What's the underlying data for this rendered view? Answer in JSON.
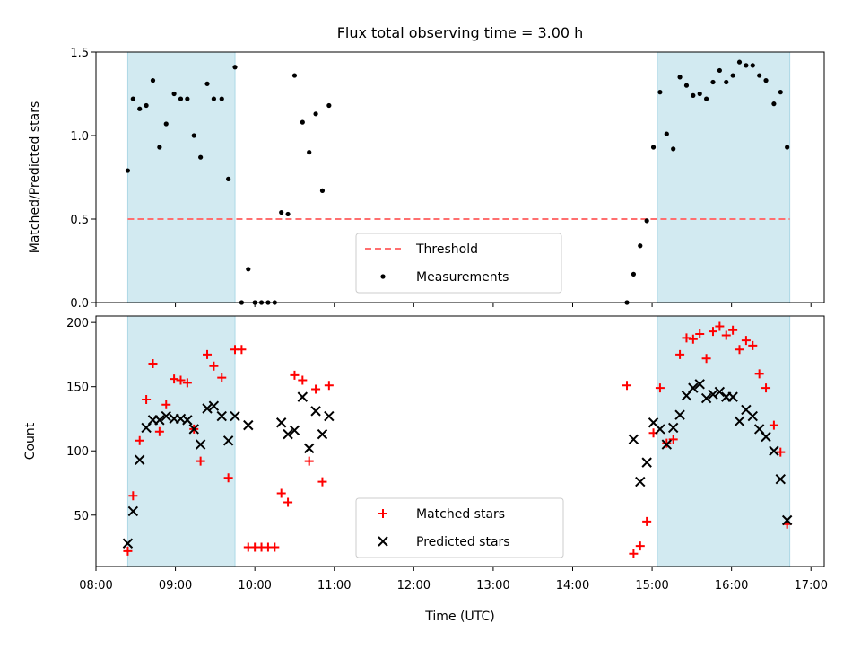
{
  "figure": {
    "title": "Flux total observing time = 3.00 h",
    "xlabel": "Time (UTC)"
  },
  "chart_data": [
    {
      "type": "scatter",
      "title": "Flux total observing time = 3.00 h",
      "ylabel": "Matched/Predicted stars",
      "xlim": [
        "08:00",
        "17:10"
      ],
      "ylim": [
        0,
        1.5
      ],
      "yticks": [
        "0.0",
        "0.5",
        "1.0",
        "1.5"
      ],
      "grid": false,
      "legend_position": "lower-center",
      "shaded_intervals": [
        {
          "start": "08:24",
          "end": "09:45",
          "color": "#add8e6"
        },
        {
          "start": "15:04",
          "end": "16:44",
          "color": "#add8e6"
        }
      ],
      "threshold": {
        "name": "Threshold",
        "value": 0.5,
        "color": "#ff6f6f",
        "style": "dashed"
      },
      "series": [
        {
          "name": "Measurements",
          "color": "#000000",
          "marker": "dot",
          "points": [
            [
              "08:24",
              0.79
            ],
            [
              "08:28",
              1.22
            ],
            [
              "08:33",
              1.16
            ],
            [
              "08:38",
              1.18
            ],
            [
              "08:43",
              1.33
            ],
            [
              "08:48",
              0.93
            ],
            [
              "08:53",
              1.07
            ],
            [
              "08:59",
              1.25
            ],
            [
              "09:04",
              1.22
            ],
            [
              "09:09",
              1.22
            ],
            [
              "09:14",
              1.0
            ],
            [
              "09:19",
              0.87
            ],
            [
              "09:24",
              1.31
            ],
            [
              "09:29",
              1.22
            ],
            [
              "09:35",
              1.22
            ],
            [
              "09:40",
              0.74
            ],
            [
              "09:45",
              1.41
            ],
            [
              "09:50",
              0.0
            ],
            [
              "09:55",
              0.2
            ],
            [
              "10:00",
              0.0
            ],
            [
              "10:05",
              0.0
            ],
            [
              "10:10",
              0.0
            ],
            [
              "10:15",
              0.0
            ],
            [
              "10:20",
              0.54
            ],
            [
              "10:25",
              0.53
            ],
            [
              "10:30",
              1.36
            ],
            [
              "10:36",
              1.08
            ],
            [
              "10:41",
              0.9
            ],
            [
              "10:46",
              1.13
            ],
            [
              "10:51",
              0.67
            ],
            [
              "10:56",
              1.18
            ],
            [
              "14:41",
              0.0
            ],
            [
              "14:46",
              0.17
            ],
            [
              "14:51",
              0.34
            ],
            [
              "14:56",
              0.49
            ],
            [
              "15:01",
              0.93
            ],
            [
              "15:06",
              1.26
            ],
            [
              "15:11",
              1.01
            ],
            [
              "15:16",
              0.92
            ],
            [
              "15:21",
              1.35
            ],
            [
              "15:26",
              1.3
            ],
            [
              "15:31",
              1.24
            ],
            [
              "15:36",
              1.25
            ],
            [
              "15:41",
              1.22
            ],
            [
              "15:46",
              1.32
            ],
            [
              "15:51",
              1.39
            ],
            [
              "15:56",
              1.32
            ],
            [
              "16:01",
              1.36
            ],
            [
              "16:06",
              1.44
            ],
            [
              "16:11",
              1.42
            ],
            [
              "16:16",
              1.42
            ],
            [
              "16:21",
              1.36
            ],
            [
              "16:26",
              1.33
            ],
            [
              "16:32",
              1.19
            ],
            [
              "16:37",
              1.26
            ],
            [
              "16:42",
              0.93
            ]
          ]
        }
      ]
    },
    {
      "type": "scatter",
      "ylabel": "Count",
      "xlabel": "Time (UTC)",
      "xlim": [
        "08:00",
        "17:10"
      ],
      "ylim": [
        10,
        205
      ],
      "yticks": [
        "50",
        "100",
        "150",
        "200"
      ],
      "xticks": [
        "08:00",
        "09:00",
        "10:00",
        "11:00",
        "12:00",
        "13:00",
        "14:00",
        "15:00",
        "16:00",
        "17:00"
      ],
      "grid": false,
      "legend_position": "lower-center",
      "shaded_intervals": [
        {
          "start": "08:24",
          "end": "09:45",
          "color": "#add8e6"
        },
        {
          "start": "15:04",
          "end": "16:44",
          "color": "#add8e6"
        }
      ],
      "series": [
        {
          "name": "Matched stars",
          "color": "#ff0000",
          "marker": "plus",
          "points": [
            [
              "08:24",
              22
            ],
            [
              "08:28",
              65
            ],
            [
              "08:33",
              108
            ],
            [
              "08:38",
              140
            ],
            [
              "08:43",
              168
            ],
            [
              "08:48",
              115
            ],
            [
              "08:53",
              136
            ],
            [
              "08:59",
              156
            ],
            [
              "09:04",
              155
            ],
            [
              "09:09",
              153
            ],
            [
              "09:14",
              117
            ],
            [
              "09:19",
              92
            ],
            [
              "09:24",
              175
            ],
            [
              "09:29",
              166
            ],
            [
              "09:35",
              157
            ],
            [
              "09:40",
              79
            ],
            [
              "09:45",
              179
            ],
            [
              "09:50",
              179
            ],
            [
              "09:55",
              25
            ],
            [
              "10:00",
              25
            ],
            [
              "10:05",
              25
            ],
            [
              "10:10",
              25
            ],
            [
              "10:15",
              25
            ],
            [
              "10:20",
              67
            ],
            [
              "10:25",
              60
            ],
            [
              "10:30",
              159
            ],
            [
              "10:36",
              155
            ],
            [
              "10:41",
              92
            ],
            [
              "10:46",
              148
            ],
            [
              "10:51",
              76
            ],
            [
              "10:56",
              151
            ],
            [
              "14:41",
              151
            ],
            [
              "14:46",
              20
            ],
            [
              "14:51",
              26
            ],
            [
              "14:56",
              45
            ],
            [
              "15:01",
              114
            ],
            [
              "15:06",
              149
            ],
            [
              "15:11",
              106
            ],
            [
              "15:16",
              109
            ],
            [
              "15:21",
              175
            ],
            [
              "15:26",
              188
            ],
            [
              "15:31",
              187
            ],
            [
              "15:36",
              191
            ],
            [
              "15:41",
              172
            ],
            [
              "15:46",
              193
            ],
            [
              "15:51",
              197
            ],
            [
              "15:56",
              190
            ],
            [
              "16:01",
              194
            ],
            [
              "16:06",
              179
            ],
            [
              "16:11",
              186
            ],
            [
              "16:16",
              182
            ],
            [
              "16:21",
              160
            ],
            [
              "16:26",
              149
            ],
            [
              "16:32",
              120
            ],
            [
              "16:37",
              99
            ],
            [
              "16:42",
              43
            ]
          ]
        },
        {
          "name": "Predicted stars",
          "color": "#000000",
          "marker": "x",
          "points": [
            [
              "08:24",
              28
            ],
            [
              "08:28",
              53
            ],
            [
              "08:33",
              93
            ],
            [
              "08:38",
              118
            ],
            [
              "08:43",
              124
            ],
            [
              "08:48",
              124
            ],
            [
              "08:53",
              127
            ],
            [
              "08:59",
              125
            ],
            [
              "09:04",
              125
            ],
            [
              "09:09",
              124
            ],
            [
              "09:14",
              117
            ],
            [
              "09:19",
              105
            ],
            [
              "09:24",
              133
            ],
            [
              "09:29",
              135
            ],
            [
              "09:35",
              127
            ],
            [
              "09:40",
              108
            ],
            [
              "09:45",
              127
            ],
            [
              "09:55",
              120
            ],
            [
              "10:20",
              122
            ],
            [
              "10:25",
              113
            ],
            [
              "10:30",
              116
            ],
            [
              "10:36",
              142
            ],
            [
              "10:41",
              102
            ],
            [
              "10:46",
              131
            ],
            [
              "10:51",
              113
            ],
            [
              "10:56",
              127
            ],
            [
              "14:46",
              109
            ],
            [
              "14:51",
              76
            ],
            [
              "14:56",
              91
            ],
            [
              "15:01",
              122
            ],
            [
              "15:06",
              117
            ],
            [
              "15:11",
              105
            ],
            [
              "15:16",
              118
            ],
            [
              "15:21",
              128
            ],
            [
              "15:26",
              143
            ],
            [
              "15:31",
              149
            ],
            [
              "15:36",
              152
            ],
            [
              "15:41",
              141
            ],
            [
              "15:46",
              144
            ],
            [
              "15:51",
              146
            ],
            [
              "15:56",
              142
            ],
            [
              "16:01",
              142
            ],
            [
              "16:06",
              123
            ],
            [
              "16:11",
              132
            ],
            [
              "16:16",
              127
            ],
            [
              "16:21",
              117
            ],
            [
              "16:26",
              111
            ],
            [
              "16:32",
              100
            ],
            [
              "16:37",
              78
            ],
            [
              "16:42",
              46
            ]
          ]
        }
      ]
    }
  ]
}
